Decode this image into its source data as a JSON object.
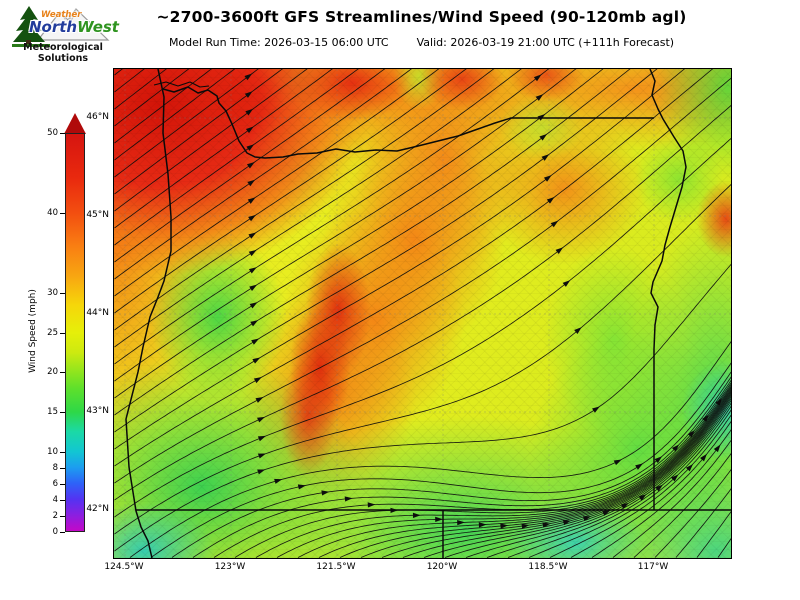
{
  "logo": {
    "weather": "Weather",
    "north": "North",
    "west": "West",
    "sub_line1": "Meteorological",
    "sub_line2": "Solutions"
  },
  "header": {
    "title": "~2700-3600ft GFS Streamlines/Wind Speed (90-120mb agl)",
    "model_run": "Model Run Time: 2026-03-15 06:00 UTC",
    "valid": "Valid: 2026-03-19 21:00 UTC  (+111h Forecast)"
  },
  "colorbar": {
    "label": "Wind Speed (mph)",
    "min": 0,
    "max": 50,
    "ticks": [
      0,
      2,
      4,
      6,
      8,
      10,
      15,
      20,
      25,
      30,
      40,
      50
    ],
    "scale_colors": {
      "0": "#c408c8",
      "5": "#4040f0",
      "10": "#12c6d2",
      "15": "#2ed847",
      "20": "#8fe51e",
      "25": "#e6ef09",
      "30": "#f6c60a",
      "40": "#f34f10",
      "50": "#d61510"
    }
  },
  "map": {
    "lat_labels": [
      "46°N",
      "45°N",
      "44°N",
      "43°N",
      "42°N"
    ],
    "lon_labels": [
      "124.5°W",
      "123°W",
      "121.5°W",
      "120°W",
      "118.5°W",
      "117°W"
    ],
    "region": "Oregon",
    "high_wind_areas": "red maxima near northwest corner, north coast and central diagonal band",
    "low_wind_areas": "green-cyan minima across the south and southeast"
  },
  "chart_data": {
    "type": "heatmap",
    "title": "~2700-3600ft GFS Streamlines/Wind Speed (90-120mb agl)",
    "colorbar_label": "Wind Speed (mph)",
    "colorbar_ticks": [
      0,
      2,
      4,
      6,
      8,
      10,
      15,
      20,
      25,
      30,
      40,
      50
    ],
    "colorbar_range": [
      0,
      50
    ],
    "x_ticks": [
      "124.5°W",
      "123°W",
      "121.5°W",
      "120°W",
      "118.5°W",
      "117°W"
    ],
    "y_ticks": [
      "42°N",
      "43°N",
      "44°N",
      "45°N",
      "46°N"
    ],
    "flow_direction": "southwest to northeast streamlines with arrowheads"
  }
}
